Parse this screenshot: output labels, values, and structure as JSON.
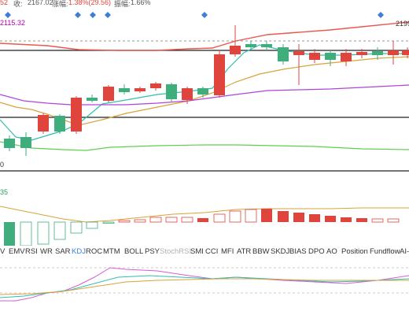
{
  "header": {
    "partial_value": "52",
    "close_label": "收:",
    "close_value": "2167.02",
    "change_label": "涨幅:",
    "change_value": "1.38%(29.56)",
    "amp_label": "振幅:",
    "amp_value": "1.66%"
  },
  "main_chart": {
    "ma_value": "2115.32",
    "price_right": "2199",
    "price_left_low": "0"
  },
  "indicator_chart": {
    "value": "35"
  },
  "tabs": [
    "V",
    "EMV",
    "RSI",
    "WR",
    "SAR",
    "KDJ",
    "ROC",
    "MTM",
    "BOLL",
    "PSY",
    "StochRSI",
    "SMI",
    "CCI",
    "MFI",
    "ATR",
    "BBW",
    "SKDJ",
    "BIAS",
    "DPO",
    "AO",
    "Position",
    "Fundflow",
    "AI-"
  ],
  "tab_states": {
    "active": "KDJ",
    "dim": [
      "KDJ",
      "StochRSI"
    ]
  },
  "colors": {
    "up": "#e0453d",
    "down": "#3fae7c",
    "ma_red": "#e8594f",
    "ma_teal": "#2fbfae",
    "ma_orange": "#d9a23b",
    "ma_purple": "#b044d9",
    "ma_green": "#5fcf4f",
    "marker_blue": "#3c7fd8"
  }
}
